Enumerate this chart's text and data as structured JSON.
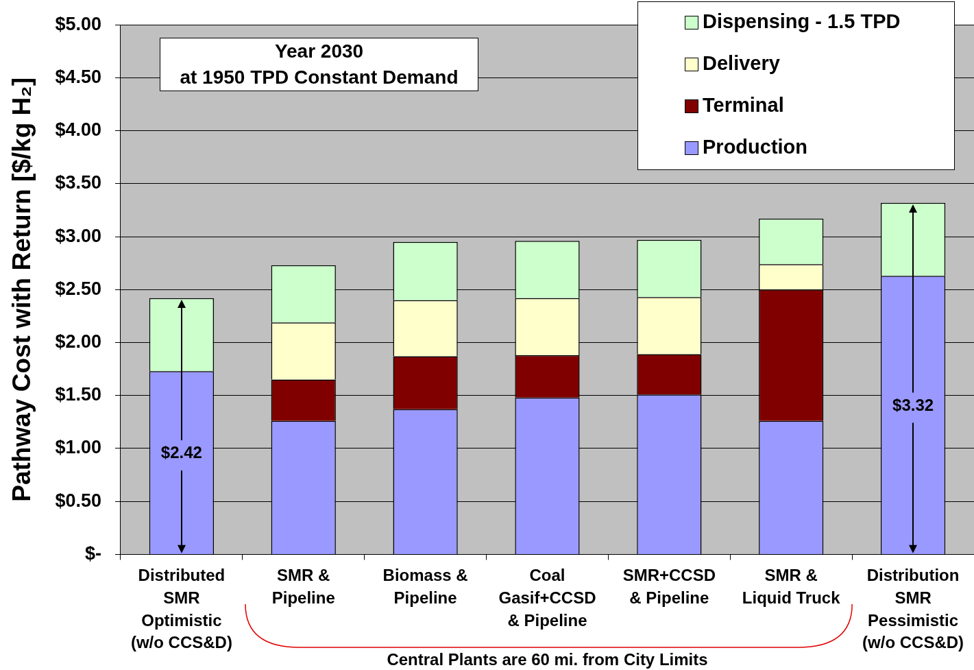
{
  "chart_data": {
    "type": "bar",
    "stacked": true,
    "ylabel": "Pathway Cost with Return [$/kg H₂]",
    "categories": [
      "Distributed\nSMR\nOptimistic\n(w/o CCS&D)",
      "SMR &\nPipeline",
      "Biomass &\nPipeline",
      "Coal\nGasif+CCSD\n& Pipeline",
      "SMR+CCSD\n& Pipeline",
      "SMR &\nLiquid Truck",
      "Distribution\nSMR\nPessimistic\n(w/o CCS&D)"
    ],
    "series": [
      {
        "name": "Production",
        "color": "#9999ff",
        "values": [
          1.73,
          1.26,
          1.37,
          1.48,
          1.51,
          1.26,
          2.63
        ]
      },
      {
        "name": "Terminal",
        "color": "#800000",
        "values": [
          0,
          0.39,
          0.5,
          0.4,
          0.38,
          1.24,
          0
        ]
      },
      {
        "name": "Delivery",
        "color": "#ffffcc",
        "values": [
          0,
          0.54,
          0.53,
          0.54,
          0.54,
          0.24,
          0
        ]
      },
      {
        "name": "Dispensing - 1.5 TPD",
        "color": "#ccffcc",
        "values": [
          0.69,
          0.54,
          0.55,
          0.54,
          0.54,
          0.43,
          0.69
        ]
      }
    ],
    "ylim": [
      0,
      5
    ],
    "yticks": [
      {
        "value": 0,
        "label": "$-"
      },
      {
        "value": 0.5,
        "label": "$0.50"
      },
      {
        "value": 1,
        "label": "$1.00"
      },
      {
        "value": 1.5,
        "label": "$1.50"
      },
      {
        "value": 2,
        "label": "$2.00"
      },
      {
        "value": 2.5,
        "label": "$2.50"
      },
      {
        "value": 3,
        "label": "$3.00"
      },
      {
        "value": 3.5,
        "label": "$3.50"
      },
      {
        "value": 4,
        "label": "$4.00"
      },
      {
        "value": 4.5,
        "label": "$4.50"
      },
      {
        "value": 5,
        "label": "$5.00"
      }
    ],
    "grid": "y",
    "legend": "top right",
    "annotations": [
      "Year 2030\nat 1950 TPD Constant Demand",
      "Central Plants are 60 mi. from City Limits",
      "$2.42",
      "$3.32"
    ]
  }
}
